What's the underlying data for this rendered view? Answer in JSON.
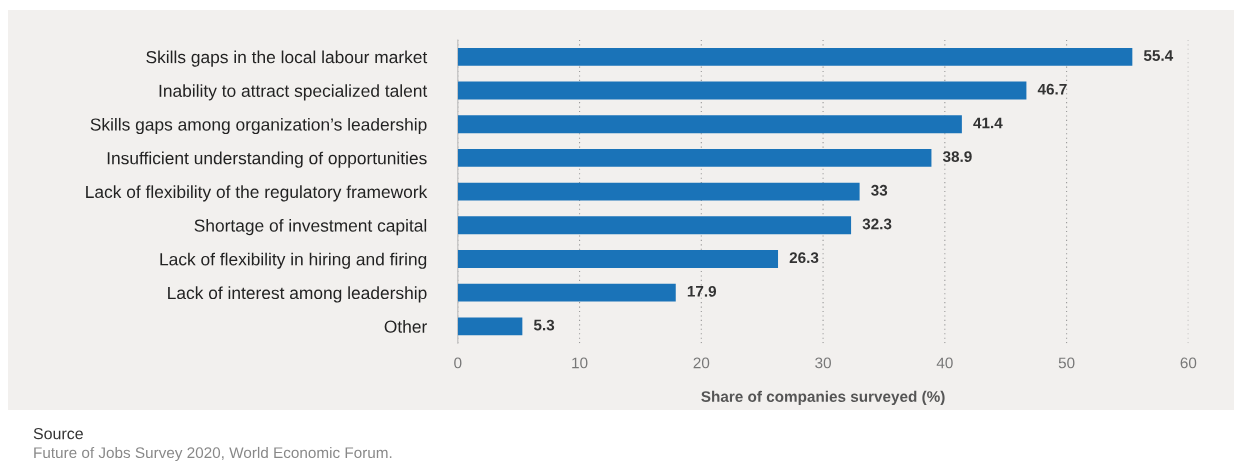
{
  "chart_data": {
    "type": "bar",
    "orientation": "horizontal",
    "categories": [
      "Skills gaps in the local labour market",
      "Inability to attract specialized talent",
      "Skills gaps among organization’s leadership",
      "Insufficient understanding of opportunities",
      "Lack of flexibility of the regulatory framework",
      "Shortage of investment capital",
      "Lack of flexibility in hiring and firing",
      "Lack of interest among leadership",
      "Other"
    ],
    "values": [
      55.4,
      46.7,
      41.4,
      38.9,
      33,
      32.3,
      26.3,
      17.9,
      5.3
    ],
    "color": "#1a73b8",
    "xlabel": "Share of companies surveyed (%)",
    "xlim": [
      0,
      60
    ],
    "xticks": [
      0,
      10,
      20,
      30,
      40,
      50,
      60
    ],
    "grid": "x",
    "data_labels": true,
    "annotations": [
      "Source",
      "Future of Jobs Survey 2020, World Economic Forum."
    ]
  }
}
